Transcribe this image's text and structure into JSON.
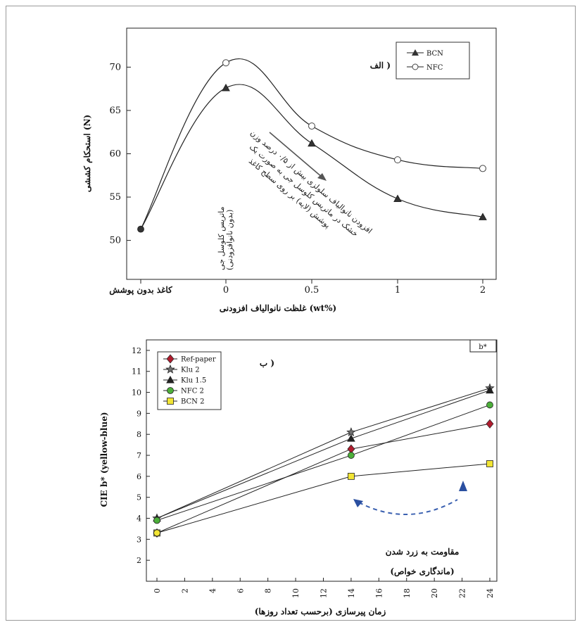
{
  "charts": [
    {
      "panel_label": "الف )",
      "type": "line",
      "ylabel": "استحکام کششی (N)",
      "xlabel": "غلظت نانوالیاف افزودنی (wt%)",
      "categories": [
        "کاغذ بدون پوشش",
        "0",
        "0.5",
        "1",
        "2"
      ],
      "yticks": [
        50,
        55,
        60,
        65,
        70
      ],
      "ylim": [
        45.5,
        74.5
      ],
      "series": [
        {
          "name": "BCN",
          "marker": "triangle",
          "values": [
            51.3,
            67.6,
            61.2,
            54.8,
            52.7
          ]
        },
        {
          "name": "NFC",
          "marker": "circle-open",
          "values": [
            51.3,
            70.5,
            63.2,
            59.3,
            58.3
          ]
        }
      ],
      "legend_position": "top-right",
      "annotation_arrow": "افزودن نانوالیاف سلولزی بیش از ۰/۵ درصد وزن خشک در ماتریس کلوسل جی به صورت یک پوشش (لایه) بر روی سطح کاغذ",
      "annotation_arrow_lines": [
        "افزودن نانوالیاف سلولزی بیش از ۰/۵ درصد وزن",
        "خشک در ماتریس کلوسل جی به صورت یک",
        "پوشش (لایه) بر روی سطح کاغذ"
      ],
      "annotation_zero_lines": [
        "ماتریس کلوسل جی",
        "(بدون نانوافزودنی)"
      ]
    },
    {
      "panel_label": "ب )",
      "corner_label": "b*",
      "type": "line",
      "ylabel": "CIE b* (yellow-blue)",
      "xlabel": "زمان پیرسازی (برحسب تعداد روزها)",
      "x": [
        0,
        14,
        24
      ],
      "xticks": [
        0,
        2,
        4,
        6,
        8,
        10,
        12,
        14,
        16,
        18,
        20,
        22,
        24
      ],
      "xlim": [
        -1,
        25
      ],
      "yticks": [
        2,
        3,
        4,
        5,
        6,
        7,
        8,
        9,
        10,
        11,
        12
      ],
      "ylim": [
        1,
        12.5
      ],
      "series": [
        {
          "name": "Ref-paper",
          "marker": "diamond",
          "color": "#b01c2e",
          "values": [
            3.3,
            7.3,
            8.5
          ]
        },
        {
          "name": "Klu 2",
          "marker": "star",
          "color": "#707070",
          "values": [
            4.0,
            8.1,
            10.2
          ]
        },
        {
          "name": "Klu 1.5",
          "marker": "triangle",
          "color": "#222222",
          "values": [
            4.0,
            7.8,
            10.1
          ]
        },
        {
          "name": "NFC 2",
          "marker": "circle",
          "color": "#4caf3a",
          "values": [
            3.9,
            7.0,
            9.4
          ]
        },
        {
          "name": "BCN 2",
          "marker": "square",
          "color": "#f2e534",
          "values": [
            3.3,
            6.0,
            6.6
          ]
        }
      ],
      "zero_extra_marker": {
        "marker": "circle",
        "color": "#f2e534",
        "value": 3.3
      },
      "legend_position": "top-left",
      "annotation_line1": "مقاومت به زرد شدن",
      "annotation_line2": "(ماندگاری خواص)"
    }
  ]
}
